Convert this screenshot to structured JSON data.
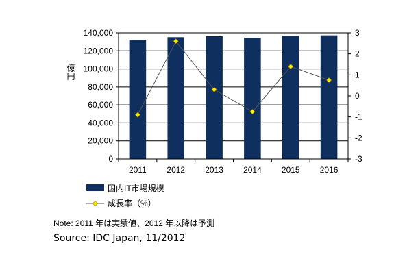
{
  "chart_data": {
    "type": "bar",
    "categories": [
      "2011",
      "2012",
      "2013",
      "2014",
      "2015",
      "2016"
    ],
    "series": [
      {
        "name": "国内IT市場規模",
        "type": "bar",
        "axis": "left",
        "values": [
          132000,
          135000,
          136000,
          134500,
          136500,
          137000
        ],
        "color": "#0f2f5f"
      },
      {
        "name": "成長率（%）",
        "type": "line",
        "axis": "right",
        "values": [
          -0.9,
          2.6,
          0.3,
          -0.75,
          1.4,
          0.75
        ],
        "color": "#555555",
        "marker_color": "#ffea00"
      }
    ],
    "ylabel": "億円",
    "ylim": [
      0,
      140000
    ],
    "yticks": [
      "0",
      "20,000",
      "40,000",
      "60,000",
      "80,000",
      "100,000",
      "120,000",
      "140,000"
    ],
    "y2lim": [
      -3,
      3
    ],
    "y2ticks": [
      "-3",
      "-2",
      "-1",
      "0",
      "1",
      "2",
      "3"
    ],
    "grid": true,
    "legend_position": "bottom-left"
  },
  "note": "Note: 2011 年は実績値、2012 年以降は予測",
  "source": "Source: IDC Japan, 11/2012"
}
